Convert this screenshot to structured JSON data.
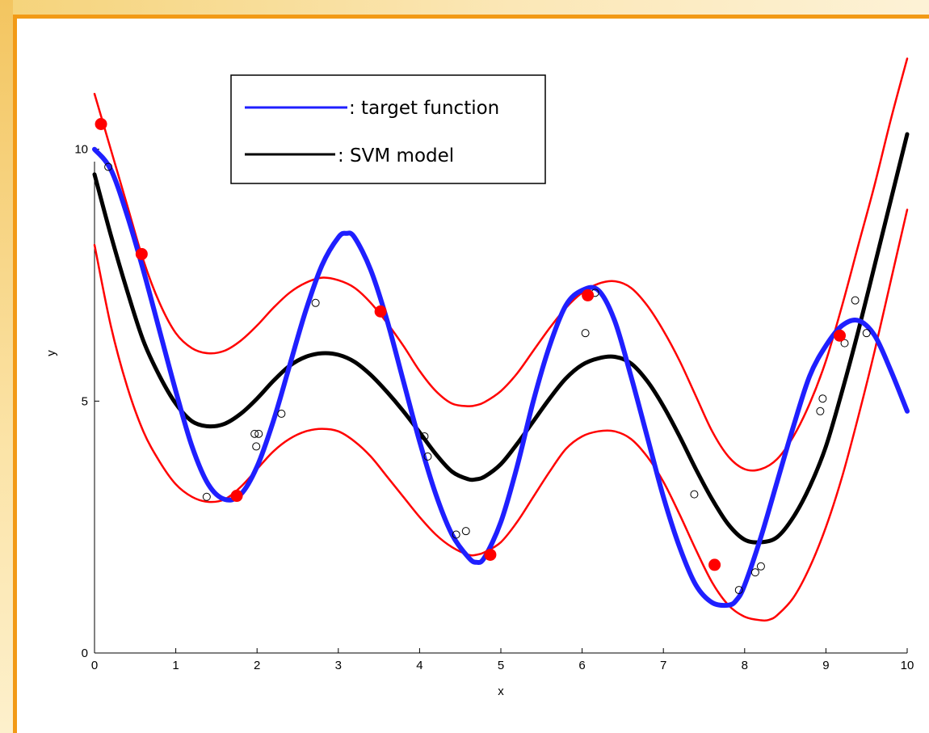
{
  "chart_data": {
    "type": "line",
    "xlabel": "x",
    "ylabel": "y",
    "xlim": [
      0,
      10
    ],
    "ylim": [
      0,
      12
    ],
    "x_ticks": [
      "0",
      "1",
      "2",
      "3",
      "4",
      "5",
      "6",
      "7",
      "8",
      "9",
      "10"
    ],
    "y_ticks": [
      "0",
      "5",
      "10"
    ],
    "y_tick_values": [
      0,
      5,
      10
    ],
    "grid": false,
    "legend_position": "top-left",
    "legend": [
      {
        "label": ": target function",
        "color": "#1f1fff"
      },
      {
        "label": ": SVM model",
        "color": "#000000"
      }
    ],
    "series": [
      {
        "name": ": target function",
        "color": "#1f1fff",
        "x": [
          0,
          0.2,
          0.4,
          0.6,
          0.8,
          1.0,
          1.2,
          1.4,
          1.6,
          1.8,
          2.0,
          2.2,
          2.4,
          2.6,
          2.8,
          3.0,
          3.1,
          3.2,
          3.4,
          3.6,
          3.8,
          4.0,
          4.2,
          4.4,
          4.6,
          4.7,
          4.8,
          5.0,
          5.2,
          5.4,
          5.6,
          5.8,
          6.0,
          6.2,
          6.4,
          6.6,
          6.8,
          7.0,
          7.2,
          7.4,
          7.6,
          7.8,
          7.9,
          8.0,
          8.2,
          8.4,
          8.6,
          8.8,
          9.0,
          9.2,
          9.4,
          9.6,
          9.8,
          10.0
        ],
        "y": [
          10.0,
          9.6,
          8.7,
          7.6,
          6.4,
          5.2,
          4.1,
          3.35,
          3.05,
          3.15,
          3.7,
          4.6,
          5.7,
          6.8,
          7.7,
          8.25,
          8.33,
          8.25,
          7.6,
          6.6,
          5.4,
          4.2,
          3.15,
          2.35,
          1.9,
          1.8,
          1.9,
          2.6,
          3.7,
          5.0,
          6.1,
          6.9,
          7.2,
          7.2,
          6.6,
          5.5,
          4.3,
          3.1,
          2.1,
          1.35,
          1.0,
          0.95,
          1.05,
          1.35,
          2.3,
          3.4,
          4.5,
          5.5,
          6.1,
          6.5,
          6.6,
          6.3,
          5.6,
          4.8
        ]
      },
      {
        "name": ": SVM model",
        "color": "#000000",
        "x": [
          0,
          0.2,
          0.4,
          0.6,
          0.8,
          1.0,
          1.2,
          1.4,
          1.6,
          1.8,
          2.0,
          2.2,
          2.4,
          2.6,
          2.8,
          3.0,
          3.2,
          3.4,
          3.6,
          3.8,
          4.0,
          4.2,
          4.4,
          4.6,
          4.7,
          4.8,
          5.0,
          5.2,
          5.4,
          5.6,
          5.8,
          6.0,
          6.2,
          6.4,
          6.6,
          6.8,
          7.0,
          7.2,
          7.4,
          7.6,
          7.8,
          8.0,
          8.2,
          8.4,
          8.6,
          8.8,
          9.0,
          9.2,
          9.4,
          9.6,
          9.8,
          10.0
        ],
        "y": [
          9.5,
          8.3,
          7.2,
          6.2,
          5.5,
          4.95,
          4.6,
          4.5,
          4.55,
          4.75,
          5.05,
          5.4,
          5.7,
          5.88,
          5.95,
          5.92,
          5.78,
          5.52,
          5.18,
          4.8,
          4.38,
          3.95,
          3.6,
          3.45,
          3.45,
          3.5,
          3.75,
          4.15,
          4.6,
          5.05,
          5.45,
          5.72,
          5.85,
          5.88,
          5.75,
          5.4,
          4.9,
          4.3,
          3.65,
          3.05,
          2.55,
          2.25,
          2.2,
          2.3,
          2.7,
          3.3,
          4.1,
          5.2,
          6.4,
          7.7,
          9.0,
          10.3
        ]
      },
      {
        "name": "",
        "color": "#ff0000",
        "x": [
          0,
          0.2,
          0.4,
          0.6,
          0.8,
          1.0,
          1.2,
          1.4,
          1.6,
          1.8,
          2.0,
          2.2,
          2.4,
          2.6,
          2.8,
          3.0,
          3.2,
          3.4,
          3.6,
          3.8,
          4.0,
          4.2,
          4.4,
          4.6,
          4.7,
          4.8,
          5.0,
          5.2,
          5.4,
          5.6,
          5.8,
          6.0,
          6.2,
          6.4,
          6.6,
          6.8,
          7.0,
          7.2,
          7.4,
          7.6,
          7.8,
          8.0,
          8.2,
          8.4,
          8.6,
          8.8,
          9.0,
          9.2,
          9.4,
          9.6,
          9.8,
          10.0
        ],
        "y": [
          11.1,
          10.0,
          8.9,
          7.8,
          6.95,
          6.35,
          6.05,
          5.95,
          6.0,
          6.2,
          6.5,
          6.85,
          7.15,
          7.35,
          7.45,
          7.4,
          7.25,
          6.95,
          6.55,
          6.1,
          5.6,
          5.2,
          4.95,
          4.9,
          4.92,
          4.98,
          5.2,
          5.55,
          6.0,
          6.45,
          6.85,
          7.15,
          7.33,
          7.38,
          7.25,
          6.9,
          6.4,
          5.8,
          5.1,
          4.4,
          3.9,
          3.65,
          3.65,
          3.85,
          4.3,
          4.95,
          5.8,
          6.9,
          8.1,
          9.3,
          10.6,
          11.8
        ]
      },
      {
        "name": "",
        "color": "#ff0000",
        "x": [
          0,
          0.2,
          0.4,
          0.6,
          0.8,
          1.0,
          1.2,
          1.4,
          1.6,
          1.8,
          2.0,
          2.2,
          2.4,
          2.6,
          2.8,
          3.0,
          3.2,
          3.4,
          3.6,
          3.8,
          4.0,
          4.2,
          4.4,
          4.6,
          4.7,
          4.8,
          5.0,
          5.2,
          5.4,
          5.6,
          5.8,
          6.0,
          6.2,
          6.4,
          6.6,
          6.8,
          7.0,
          7.2,
          7.4,
          7.6,
          7.8,
          8.0,
          8.2,
          8.3,
          8.4,
          8.6,
          8.8,
          9.0,
          9.2,
          9.4,
          9.6,
          9.8,
          10.0
        ],
        "y": [
          8.1,
          6.5,
          5.3,
          4.4,
          3.8,
          3.35,
          3.1,
          3.0,
          3.05,
          3.3,
          3.65,
          4.0,
          4.25,
          4.4,
          4.45,
          4.4,
          4.2,
          3.9,
          3.5,
          3.1,
          2.7,
          2.35,
          2.1,
          1.95,
          1.95,
          2.0,
          2.2,
          2.6,
          3.1,
          3.6,
          4.05,
          4.3,
          4.4,
          4.4,
          4.25,
          3.9,
          3.4,
          2.75,
          2.05,
          1.4,
          0.95,
          0.72,
          0.65,
          0.66,
          0.75,
          1.1,
          1.7,
          2.5,
          3.5,
          4.7,
          6.0,
          7.4,
          8.8
        ]
      }
    ],
    "support_vectors": {
      "color": "#ff0000",
      "x": [
        0.08,
        0.58,
        1.75,
        3.52,
        4.87,
        6.07,
        7.63,
        9.17
      ],
      "y": [
        10.5,
        7.92,
        3.12,
        6.78,
        1.95,
        7.1,
        1.75,
        6.3
      ]
    },
    "data_points": {
      "x": [
        0.17,
        1.38,
        1.97,
        1.99,
        2.02,
        2.3,
        2.72,
        4.06,
        4.1,
        4.45,
        4.57,
        6.04,
        6.16,
        7.38,
        7.93,
        8.13,
        8.2,
        8.93,
        8.96,
        9.23,
        9.36,
        9.5
      ],
      "y": [
        9.65,
        3.1,
        4.35,
        4.1,
        4.35,
        4.75,
        6.95,
        4.3,
        3.9,
        2.35,
        2.42,
        6.35,
        7.15,
        3.15,
        1.25,
        1.6,
        1.72,
        4.8,
        5.05,
        6.15,
        7.0,
        6.35
      ]
    }
  }
}
